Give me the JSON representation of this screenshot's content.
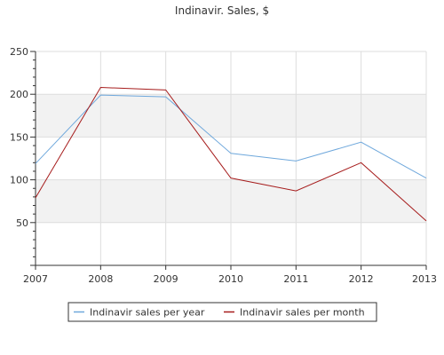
{
  "chart_data": {
    "type": "line",
    "title": "Indinavir. Sales, $",
    "x": [
      "2007",
      "2008",
      "2009",
      "2010",
      "2011",
      "2012",
      "2013"
    ],
    "ylim": [
      0,
      250
    ],
    "yticks": [
      50,
      100,
      150,
      200,
      250
    ],
    "grid": true,
    "legend_position": "bottom",
    "series": [
      {
        "name": "Indinavir sales per year",
        "color": "#6fa8dc",
        "values": [
          119,
          199,
          197,
          131,
          122,
          144,
          102
        ]
      },
      {
        "name": "Indinavir sales per month",
        "color": "#a61c1c",
        "values": [
          79,
          208,
          205,
          102,
          87,
          120,
          52
        ]
      }
    ]
  }
}
